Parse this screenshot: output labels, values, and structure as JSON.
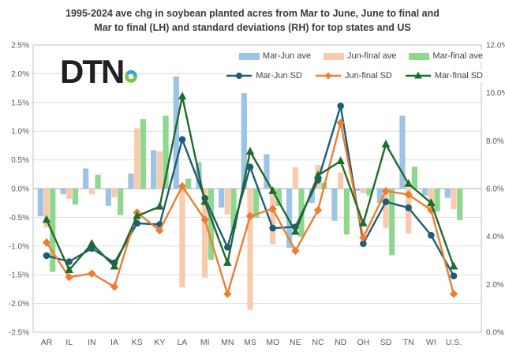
{
  "title": {
    "line1": "1995-2024 ave chg in soybean planted acres from Mar to June, June to final  and",
    "line2": "Mar to final (LH) and standard deviations  (RH) for top states and US"
  },
  "logo": {
    "text": "DTN",
    "ring_colors": {
      "top": "#2BA7DF",
      "bottom": "#7DC242"
    }
  },
  "chart_data": {
    "type": "bar+line combo",
    "grid": true,
    "legend_position": "top-right-inside",
    "categories": [
      "AR",
      "IL",
      "IN",
      "IA",
      "KS",
      "KY",
      "LA",
      "MI",
      "MN",
      "MS",
      "MO",
      "NE",
      "NC",
      "ND",
      "OH",
      "SD",
      "TN",
      "WI",
      "U.S."
    ],
    "left_axis": {
      "min": -2.5,
      "max": 2.5,
      "step": 0.5,
      "ticks": [
        "2.5%",
        "2.0%",
        "1.5%",
        "1.0%",
        "0.5%",
        "0.0%",
        "-0.5%",
        "-1.0%",
        "-1.5%",
        "-2.0%",
        "-2.5%"
      ]
    },
    "right_axis": {
      "min": 0,
      "max": 12,
      "step": 2,
      "ticks": [
        "12.0%",
        "10.0%",
        "8.0%",
        "6.0%",
        "4.0%",
        "2.0%",
        "0.0%"
      ]
    },
    "bar_series": [
      {
        "name": "Mar-Jun ave",
        "axis": "left",
        "color": "#9DC3E6",
        "values": [
          -0.48,
          -0.1,
          0.35,
          -0.3,
          0.26,
          0.67,
          1.95,
          0.46,
          -0.33,
          1.66,
          0.6,
          -1.03,
          -0.25,
          -0.56,
          -0.04,
          -0.25,
          1.27,
          -0.12,
          -0.16
        ]
      },
      {
        "name": "Jun-final ave",
        "axis": "left",
        "color": "#F8CBAD",
        "values": [
          -0.68,
          -0.18,
          -0.1,
          -0.15,
          1.05,
          0.65,
          -1.72,
          -1.55,
          -0.45,
          -2.11,
          -0.97,
          0.37,
          0.41,
          0.28,
          -0.08,
          -0.69,
          -0.78,
          -0.35,
          -0.36
        ]
      },
      {
        "name": "Mar-final ave",
        "axis": "left",
        "color": "#8FD68E",
        "values": [
          -1.45,
          -0.28,
          0.24,
          -0.46,
          1.21,
          1.27,
          0.17,
          -1.24,
          -0.7,
          -0.51,
          -0.3,
          -0.84,
          0.1,
          -0.8,
          -0.12,
          -1.16,
          0.38,
          -0.4,
          -0.55
        ]
      }
    ],
    "line_series": [
      {
        "name": "Mar-Jun SD",
        "axis": "right",
        "color": "#1E5C78",
        "marker": "circle",
        "values": [
          3.2,
          2.95,
          3.5,
          2.9,
          4.55,
          4.5,
          8.05,
          5.6,
          3.55,
          6.9,
          4.35,
          4.4,
          6.35,
          9.45,
          3.7,
          5.45,
          5.2,
          4.05,
          2.35
        ]
      },
      {
        "name": "Jun-final SD",
        "axis": "right",
        "color": "#ED7D31",
        "marker": "diamond",
        "values": [
          3.75,
          2.3,
          2.45,
          1.9,
          5.0,
          4.25,
          6.1,
          4.7,
          1.6,
          4.85,
          5.15,
          3.4,
          5.1,
          8.75,
          3.95,
          5.9,
          5.75,
          5.1,
          1.6
        ]
      },
      {
        "name": "Mar-final SD",
        "axis": "right",
        "color": "#1E6B2B",
        "marker": "triangle",
        "values": [
          4.7,
          2.6,
          3.7,
          2.75,
          4.85,
          5.25,
          9.85,
          5.45,
          2.9,
          7.55,
          5.9,
          4.2,
          6.55,
          7.15,
          4.55,
          7.85,
          6.2,
          5.4,
          2.75
        ]
      }
    ]
  }
}
